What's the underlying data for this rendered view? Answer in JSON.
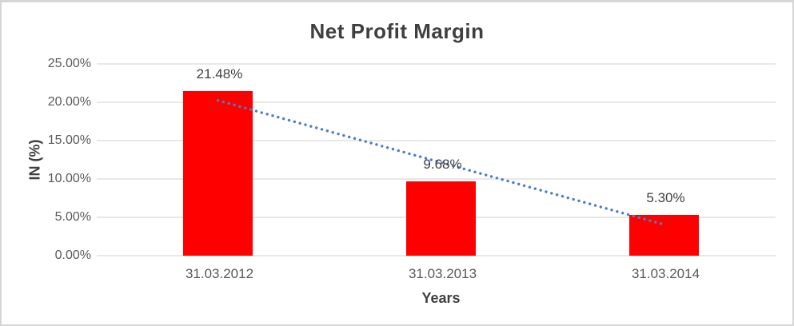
{
  "window": {
    "background": "#ffffff",
    "border_color": "#d6d6d6"
  },
  "chart_data": {
    "type": "bar",
    "title": "Net Profit Margin",
    "xlabel": "Years",
    "ylabel": "IN (%)",
    "categories": [
      "31.03.2012",
      "31.03.2013",
      "31.03.2014"
    ],
    "series": [
      {
        "name": "Net Profit Margin",
        "values": [
          21.48,
          9.68,
          5.3
        ],
        "data_labels": [
          "21.48%",
          "9.68%",
          "5.30%"
        ],
        "color": "#ff0000"
      }
    ],
    "ylim": [
      0,
      25
    ],
    "ytick_step": 5,
    "ytick_labels": [
      "0.00%",
      "5.00%",
      "10.00%",
      "15.00%",
      "20.00%",
      "25.00%"
    ],
    "grid": true,
    "gridline_color": "#d9d9d9",
    "legend_position": "none",
    "trendline": {
      "type": "linear",
      "style": "dotted",
      "color": "#4a7ec7",
      "points": [
        {
          "category_index": 0,
          "value": 20.24
        },
        {
          "category_index": 2,
          "value": 4.06
        }
      ]
    },
    "text_colors": {
      "title": "#3f3f3f",
      "axis_title": "#3f3f3f",
      "tick_label": "#595959",
      "data_label": "#404040"
    }
  }
}
